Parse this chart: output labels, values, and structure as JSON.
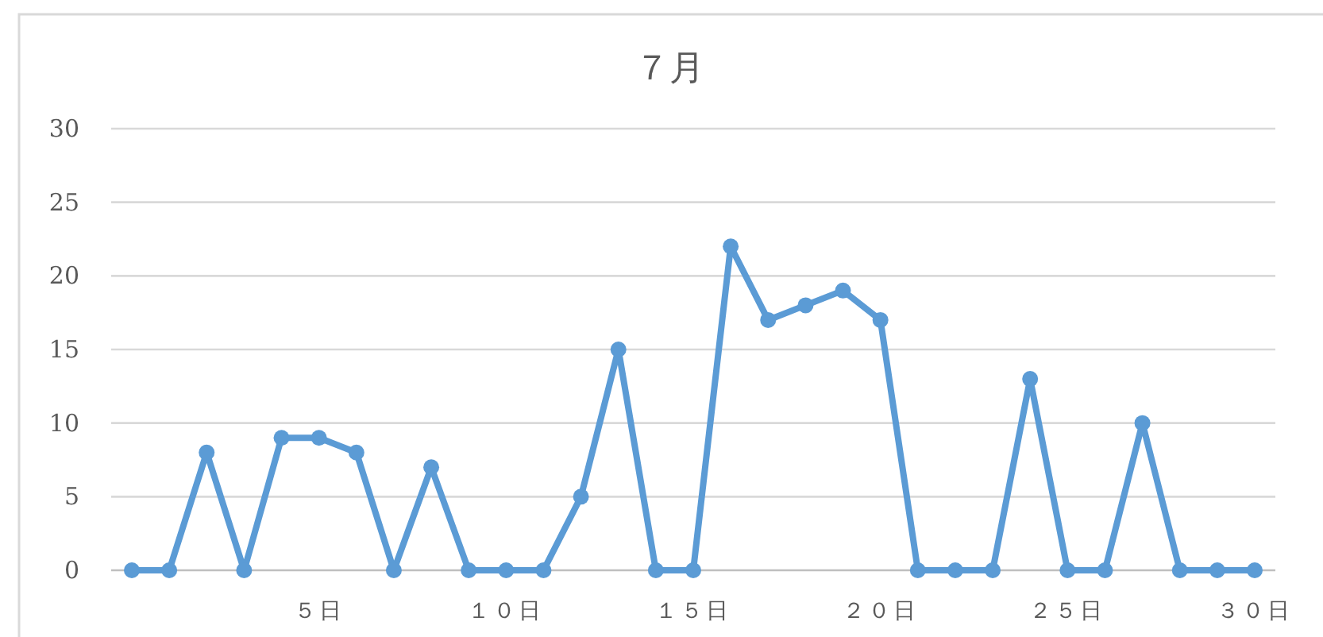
{
  "chart_data": {
    "type": "line",
    "title": "７月",
    "categories": [
      null,
      null,
      null,
      null,
      null,
      "５日",
      null,
      null,
      null,
      null,
      "１０日",
      null,
      null,
      null,
      null,
      "１５日",
      null,
      null,
      null,
      null,
      "２０日",
      null,
      null,
      null,
      null,
      "２５日",
      null,
      null,
      null,
      null,
      "３０日"
    ],
    "series": [
      {
        "color": "#5b9bd5",
        "values": [
          0,
          0,
          8,
          0,
          9,
          9,
          8,
          0,
          7,
          0,
          0,
          0,
          5,
          15,
          0,
          0,
          22,
          17,
          18,
          19,
          17,
          0,
          0,
          0,
          13,
          0,
          0,
          10,
          0,
          0,
          0
        ]
      }
    ],
    "ylim": [
      0,
      30
    ],
    "yticks": [
      0,
      5,
      10,
      15,
      20,
      25,
      30
    ],
    "grid": "y",
    "marker": "circle",
    "line_style": "solid"
  }
}
